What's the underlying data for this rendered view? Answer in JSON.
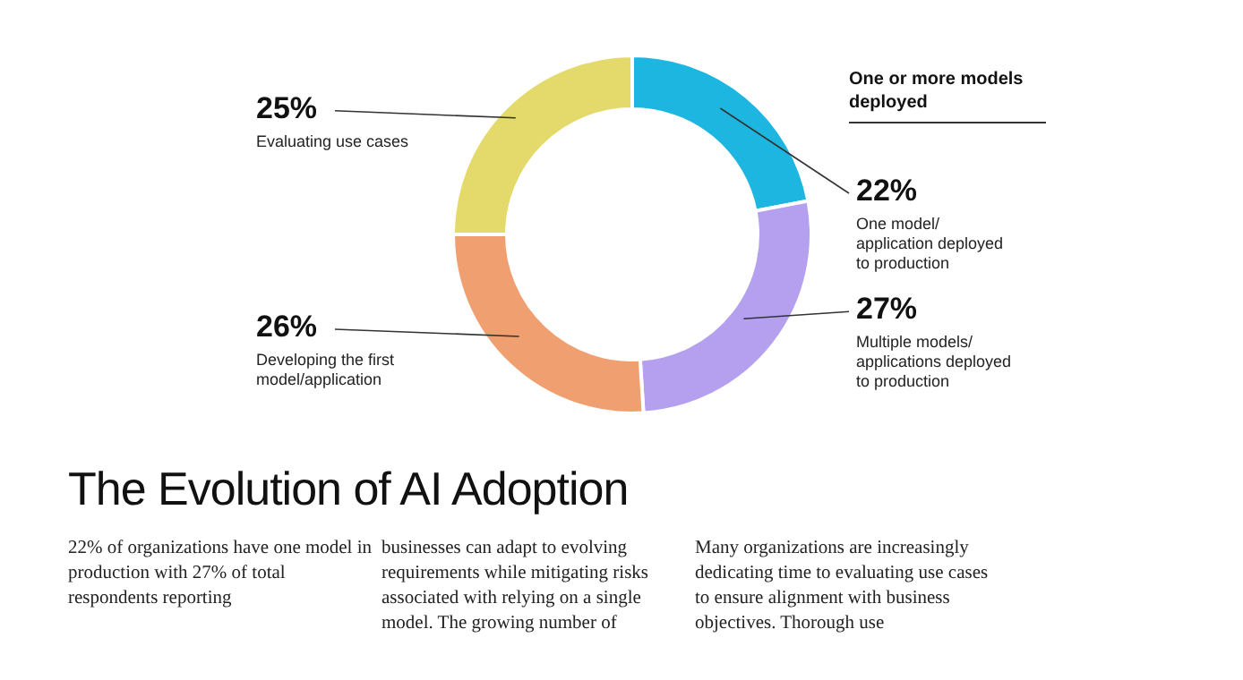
{
  "chart_data": {
    "type": "donut",
    "title": "The Evolution of AI Adoption",
    "categories": [
      "One model/ application deployed to production",
      "Multiple models/ applications deployed to production",
      "Developing the first model/application",
      "Evaluating use cases"
    ],
    "values": [
      22,
      27,
      26,
      25
    ],
    "value_labels": [
      "22%",
      "27%",
      "26%",
      "25%"
    ],
    "colors": [
      "#1cb6e0",
      "#b5a0f0",
      "#f0a070",
      "#e4da6c"
    ],
    "annotations": [
      "One or more models deployed",
      "22% of organizations have one model in production with 27% of total respondents reporting",
      "businesses can adapt to evolving requirements while mitigating risks associated with relying on a single model. The growing number of",
      "Many organizations are increasingly dedicating time to evaluating use cases to ensure alignment with business objectives. Thorough use"
    ]
  }
}
